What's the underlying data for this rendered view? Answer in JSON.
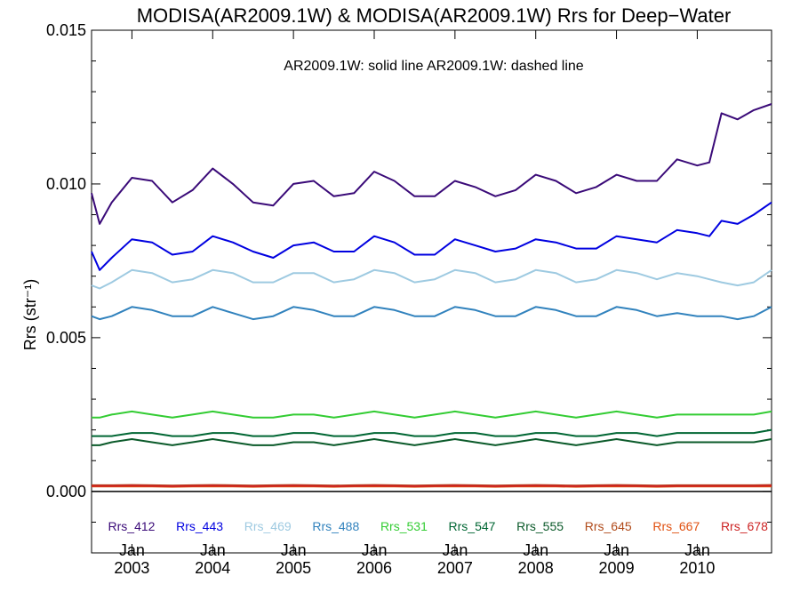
{
  "chart_data": {
    "type": "line",
    "title": "MODISA(AR2009.1W) & MODISA(AR2009.1W)  Rrs for Deep−Water",
    "ylabel": "Rrs (str⁻¹)",
    "annotation": "AR2009.1W: solid line   AR2009.1W: dashed line",
    "xlim": [
      2002.5,
      2010.92
    ],
    "ylim": [
      -0.002,
      0.015
    ],
    "yticks": [
      {
        "value": 0.0,
        "label": "0.000"
      },
      {
        "value": 0.005,
        "label": "0.005"
      },
      {
        "value": 0.01,
        "label": "0.010"
      },
      {
        "value": 0.015,
        "label": "0.015"
      }
    ],
    "xticks": [
      {
        "value": 2003.0,
        "label_top": "Jan",
        "label_bottom": "2003"
      },
      {
        "value": 2004.0,
        "label_top": "Jan",
        "label_bottom": "2004"
      },
      {
        "value": 2005.0,
        "label_top": "Jan",
        "label_bottom": "2005"
      },
      {
        "value": 2006.0,
        "label_top": "Jan",
        "label_bottom": "2006"
      },
      {
        "value": 2007.0,
        "label_top": "Jan",
        "label_bottom": "2007"
      },
      {
        "value": 2008.0,
        "label_top": "Jan",
        "label_bottom": "2008"
      },
      {
        "value": 2009.0,
        "label_top": "Jan",
        "label_bottom": "2009"
      },
      {
        "value": 2010.0,
        "label_top": "Jan",
        "label_bottom": "2010"
      }
    ],
    "grid": false,
    "legend_position": "bottom inside plot",
    "zero_line": 0.0,
    "x": [
      2002.5,
      2002.6,
      2002.75,
      2003.0,
      2003.25,
      2003.5,
      2003.75,
      2004.0,
      2004.25,
      2004.5,
      2004.75,
      2005.0,
      2005.25,
      2005.5,
      2005.75,
      2006.0,
      2006.25,
      2006.5,
      2006.75,
      2007.0,
      2007.25,
      2007.5,
      2007.75,
      2008.0,
      2008.25,
      2008.5,
      2008.75,
      2009.0,
      2009.25,
      2009.5,
      2009.75,
      2010.0,
      2010.15,
      2010.3,
      2010.5,
      2010.7,
      2010.92
    ],
    "series": [
      {
        "name": "Rrs_412",
        "color": "#3a0a78",
        "values": [
          0.0097,
          0.0087,
          0.0094,
          0.0102,
          0.0101,
          0.0094,
          0.0098,
          0.0105,
          0.01,
          0.0094,
          0.0093,
          0.01,
          0.0101,
          0.0096,
          0.0097,
          0.0104,
          0.0101,
          0.0096,
          0.0096,
          0.0101,
          0.0099,
          0.0096,
          0.0098,
          0.0103,
          0.0101,
          0.0097,
          0.0099,
          0.0103,
          0.0101,
          0.0101,
          0.0108,
          0.0106,
          0.0107,
          0.0123,
          0.0121,
          0.0124,
          0.0126
        ]
      },
      {
        "name": "Rrs_443",
        "color": "#0000e0",
        "values": [
          0.0078,
          0.0072,
          0.0076,
          0.0082,
          0.0081,
          0.0077,
          0.0078,
          0.0083,
          0.0081,
          0.0078,
          0.0076,
          0.008,
          0.0081,
          0.0078,
          0.0078,
          0.0083,
          0.0081,
          0.0077,
          0.0077,
          0.0082,
          0.008,
          0.0078,
          0.0079,
          0.0082,
          0.0081,
          0.0079,
          0.0079,
          0.0083,
          0.0082,
          0.0081,
          0.0085,
          0.0084,
          0.0083,
          0.0088,
          0.0087,
          0.009,
          0.0094
        ]
      },
      {
        "name": "Rrs_469",
        "color": "#9ecae1",
        "values": [
          0.0067,
          0.0066,
          0.0068,
          0.0072,
          0.0071,
          0.0068,
          0.0069,
          0.0072,
          0.0071,
          0.0068,
          0.0068,
          0.0071,
          0.0071,
          0.0068,
          0.0069,
          0.0072,
          0.0071,
          0.0068,
          0.0069,
          0.0072,
          0.0071,
          0.0068,
          0.0069,
          0.0072,
          0.0071,
          0.0068,
          0.0069,
          0.0072,
          0.0071,
          0.0069,
          0.0071,
          0.007,
          0.0069,
          0.0068,
          0.0067,
          0.0068,
          0.0072
        ]
      },
      {
        "name": "Rrs_488",
        "color": "#3182bd",
        "values": [
          0.0057,
          0.0056,
          0.0057,
          0.006,
          0.0059,
          0.0057,
          0.0057,
          0.006,
          0.0058,
          0.0056,
          0.0057,
          0.006,
          0.0059,
          0.0057,
          0.0057,
          0.006,
          0.0059,
          0.0057,
          0.0057,
          0.006,
          0.0059,
          0.0057,
          0.0057,
          0.006,
          0.0059,
          0.0057,
          0.0057,
          0.006,
          0.0059,
          0.0057,
          0.0058,
          0.0057,
          0.0057,
          0.0057,
          0.0056,
          0.0057,
          0.006
        ]
      },
      {
        "name": "Rrs_531",
        "color": "#33cc33",
        "values": [
          0.0024,
          0.0024,
          0.0025,
          0.0026,
          0.0025,
          0.0024,
          0.0025,
          0.0026,
          0.0025,
          0.0024,
          0.0024,
          0.0025,
          0.0025,
          0.0024,
          0.0025,
          0.0026,
          0.0025,
          0.0024,
          0.0025,
          0.0026,
          0.0025,
          0.0024,
          0.0025,
          0.0026,
          0.0025,
          0.0024,
          0.0025,
          0.0026,
          0.0025,
          0.0024,
          0.0025,
          0.0025,
          0.0025,
          0.0025,
          0.0025,
          0.0025,
          0.0026
        ]
      },
      {
        "name": "Rrs_547",
        "color": "#006633",
        "values": [
          0.0018,
          0.0018,
          0.0018,
          0.0019,
          0.0019,
          0.0018,
          0.0018,
          0.0019,
          0.0019,
          0.0018,
          0.0018,
          0.0019,
          0.0019,
          0.0018,
          0.0018,
          0.0019,
          0.0019,
          0.0018,
          0.0018,
          0.0019,
          0.0019,
          0.0018,
          0.0018,
          0.0019,
          0.0019,
          0.0018,
          0.0018,
          0.0019,
          0.0019,
          0.0018,
          0.0019,
          0.0019,
          0.0019,
          0.0019,
          0.0019,
          0.0019,
          0.002
        ]
      },
      {
        "name": "Rrs_555",
        "color": "#0b5a2a",
        "values": [
          0.0015,
          0.0015,
          0.0016,
          0.0017,
          0.0016,
          0.0015,
          0.0016,
          0.0017,
          0.0016,
          0.0015,
          0.0015,
          0.0016,
          0.0016,
          0.0015,
          0.0016,
          0.0017,
          0.0016,
          0.0015,
          0.0016,
          0.0017,
          0.0016,
          0.0015,
          0.0016,
          0.0017,
          0.0016,
          0.0015,
          0.0016,
          0.0017,
          0.0016,
          0.0015,
          0.0016,
          0.0016,
          0.0016,
          0.0016,
          0.0016,
          0.0016,
          0.0017
        ]
      },
      {
        "name": "Rrs_645",
        "color": "#b04a1a",
        "values": [
          0.0002,
          0.0002,
          0.0002,
          0.00021,
          0.0002,
          0.00019,
          0.0002,
          0.00021,
          0.0002,
          0.00019,
          0.0002,
          0.00021,
          0.0002,
          0.00019,
          0.0002,
          0.00021,
          0.0002,
          0.00019,
          0.0002,
          0.00021,
          0.0002,
          0.00019,
          0.0002,
          0.00021,
          0.0002,
          0.00019,
          0.0002,
          0.00021,
          0.0002,
          0.00019,
          0.0002,
          0.0002,
          0.0002,
          0.0002,
          0.0002,
          0.0002,
          0.00021
        ]
      },
      {
        "name": "Rrs_667",
        "color": "#e05010",
        "values": [
          0.00016,
          0.00016,
          0.00016,
          0.00016,
          0.00016,
          0.00015,
          0.00016,
          0.00016,
          0.00016,
          0.00015,
          0.00016,
          0.00016,
          0.00016,
          0.00015,
          0.00016,
          0.00016,
          0.00016,
          0.00015,
          0.00016,
          0.00016,
          0.00016,
          0.00015,
          0.00016,
          0.00016,
          0.00016,
          0.00015,
          0.00016,
          0.00016,
          0.00016,
          0.00015,
          0.00016,
          0.00016,
          0.00016,
          0.00016,
          0.00016,
          0.00016,
          0.00016
        ]
      },
      {
        "name": "Rrs_678",
        "color": "#cc2222",
        "values": [
          0.00018,
          0.00018,
          0.00018,
          0.00019,
          0.00018,
          0.00017,
          0.00018,
          0.00019,
          0.00018,
          0.00017,
          0.00018,
          0.00019,
          0.00018,
          0.00017,
          0.00018,
          0.00019,
          0.00018,
          0.00017,
          0.00018,
          0.00019,
          0.00018,
          0.00017,
          0.00018,
          0.00019,
          0.00018,
          0.00017,
          0.00018,
          0.00019,
          0.00018,
          0.00017,
          0.00018,
          0.00018,
          0.00018,
          0.00018,
          0.00018,
          0.00018,
          0.00019
        ]
      }
    ]
  }
}
